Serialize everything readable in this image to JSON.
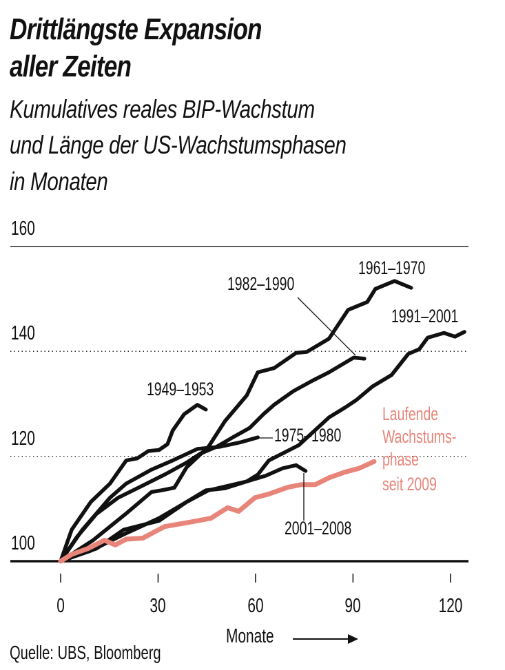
{
  "title_lines": [
    "Drittlängste Expansion",
    "aller Zeiten"
  ],
  "subtitle_lines": [
    "Kumulatives reales BIP-Wachstum",
    "und Länge der US-Wachstumsphasen",
    "in Monaten"
  ],
  "source": "Quelle: UBS, Bloomberg",
  "chart_data": {
    "type": "line",
    "xlabel": "Monate",
    "ylabel": "",
    "xlim": [
      0,
      123
    ],
    "ylim": [
      100,
      160
    ],
    "xticks": [
      0,
      30,
      60,
      90,
      120
    ],
    "yticks": [
      100,
      120,
      140,
      160
    ],
    "grid": "dotted horizontal at 120 and 140",
    "colors": {
      "default": "#111111",
      "current": "#e8857a"
    },
    "series": [
      {
        "name": "1961–1970",
        "points": [
          [
            0,
            100
          ],
          [
            10,
            104
          ],
          [
            20,
            109
          ],
          [
            28,
            113.2
          ],
          [
            31,
            113.5
          ],
          [
            35,
            114
          ],
          [
            38.8,
            117.9
          ],
          [
            45.5,
            121.8
          ],
          [
            50.6,
            126.7
          ],
          [
            57.3,
            131.6
          ],
          [
            60.7,
            136
          ],
          [
            65.7,
            136.8
          ],
          [
            72.5,
            139.7
          ],
          [
            75.8,
            139.9
          ],
          [
            82.6,
            142.4
          ],
          [
            88.5,
            147.9
          ],
          [
            94.4,
            149.4
          ],
          [
            96.9,
            151.9
          ],
          [
            102.8,
            153.4
          ],
          [
            107.9,
            152.1
          ]
        ]
      },
      {
        "name": "1982–1990",
        "points": [
          [
            0,
            100
          ],
          [
            5,
            104.6
          ],
          [
            11,
            109
          ],
          [
            17.7,
            112.1
          ],
          [
            23.6,
            113.9
          ],
          [
            32,
            116.5
          ],
          [
            38.8,
            118.8
          ],
          [
            43,
            120.5
          ],
          [
            48,
            121.8
          ],
          [
            53,
            123.6
          ],
          [
            58.2,
            125.4
          ],
          [
            62.4,
            128
          ],
          [
            65.7,
            129.8
          ],
          [
            71.6,
            132.4
          ],
          [
            77.5,
            134.4
          ],
          [
            82.6,
            136
          ],
          [
            90.2,
            138.8
          ],
          [
            93.5,
            138.6
          ]
        ]
      },
      {
        "name": "1991–2001",
        "points": [
          [
            0,
            100
          ],
          [
            11,
            102.4
          ],
          [
            19.4,
            106
          ],
          [
            30.3,
            107.7
          ],
          [
            38.8,
            111.3
          ],
          [
            45.5,
            113.5
          ],
          [
            57.3,
            115.2
          ],
          [
            60.7,
            116.5
          ],
          [
            64.1,
            119.2
          ],
          [
            73.3,
            122.1
          ],
          [
            82.6,
            127.4
          ],
          [
            87.6,
            129.3
          ],
          [
            91,
            130.7
          ],
          [
            96,
            133.3
          ],
          [
            101.9,
            135.5
          ],
          [
            107,
            139.5
          ],
          [
            110.4,
            140.4
          ],
          [
            113,
            142.6
          ],
          [
            118,
            143.5
          ],
          [
            121.4,
            142.8
          ],
          [
            124.3,
            143.7
          ]
        ]
      },
      {
        "name": "1949–1953",
        "points": [
          [
            0,
            100
          ],
          [
            3.4,
            106
          ],
          [
            9.3,
            111.3
          ],
          [
            15.2,
            114.8
          ],
          [
            20.2,
            119.2
          ],
          [
            23.6,
            119.6
          ],
          [
            27,
            121
          ],
          [
            30.3,
            121.2
          ],
          [
            32.9,
            122.3
          ],
          [
            34.5,
            124.9
          ],
          [
            38,
            128
          ],
          [
            42.1,
            129.8
          ],
          [
            44.7,
            128.9
          ]
        ]
      },
      {
        "name": "1975–1980",
        "points": [
          [
            0,
            100
          ],
          [
            6.7,
            106
          ],
          [
            15.2,
            112.1
          ],
          [
            20.2,
            114.8
          ],
          [
            27.8,
            117.4
          ],
          [
            34.5,
            119.2
          ],
          [
            42.1,
            121.4
          ],
          [
            48.9,
            121.8
          ],
          [
            55.6,
            122.7
          ],
          [
            60.7,
            123.6
          ]
        ]
      },
      {
        "name": "2001–2008",
        "points": [
          [
            0,
            100
          ],
          [
            9.3,
            102
          ],
          [
            19.4,
            105.1
          ],
          [
            30.3,
            108.2
          ],
          [
            38.8,
            111.3
          ],
          [
            44.7,
            113.5
          ],
          [
            50.6,
            113.9
          ],
          [
            57.3,
            115.2
          ],
          [
            63.2,
            116.3
          ],
          [
            68.3,
            117.7
          ],
          [
            72.5,
            118.3
          ],
          [
            75.4,
            117.2
          ]
        ]
      },
      {
        "name": "Laufende Wachstumsphase seit 2009",
        "label_lines": [
          "Laufende",
          "Wachstums-",
          "phase",
          "seit 2009"
        ],
        "current": true,
        "points": [
          [
            0,
            100
          ],
          [
            3.4,
            101.3
          ],
          [
            8.4,
            102.4
          ],
          [
            13.5,
            104
          ],
          [
            16.8,
            103.1
          ],
          [
            20.2,
            104.2
          ],
          [
            25.3,
            104.4
          ],
          [
            32,
            106.6
          ],
          [
            40.4,
            107.5
          ],
          [
            46.3,
            108.2
          ],
          [
            51.4,
            110.2
          ],
          [
            54.8,
            109.5
          ],
          [
            59.8,
            112.1
          ],
          [
            64.1,
            112.8
          ],
          [
            70,
            114.1
          ],
          [
            74.1,
            114.6
          ],
          [
            78.4,
            114.6
          ],
          [
            82.6,
            115.9
          ],
          [
            87.6,
            117
          ],
          [
            91.9,
            117.7
          ],
          [
            96.5,
            119
          ]
        ]
      }
    ]
  }
}
